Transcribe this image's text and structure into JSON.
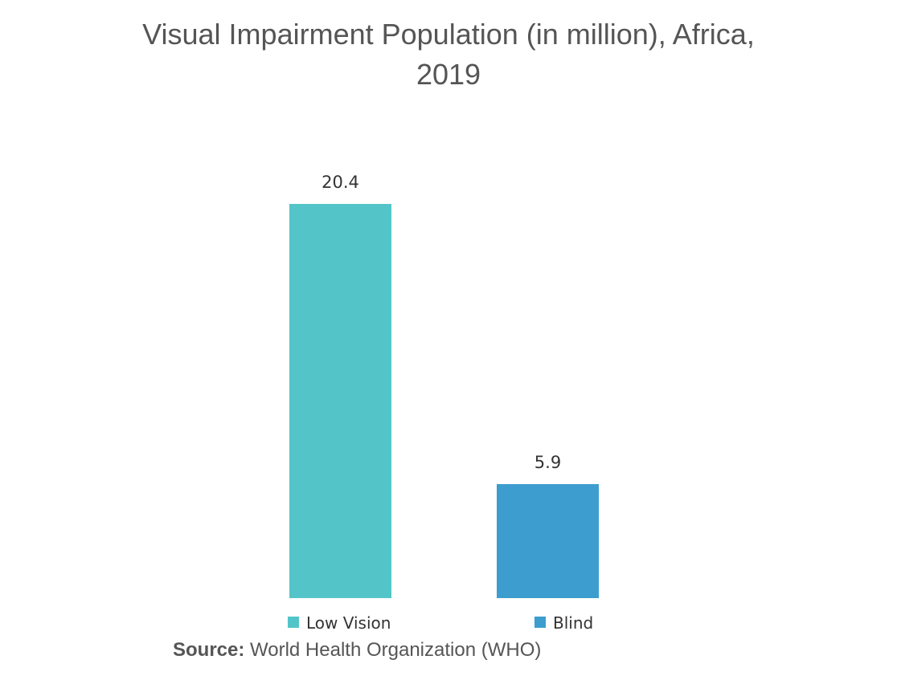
{
  "chart_data": {
    "type": "bar",
    "title_lines": [
      "Visual Impairment Population (in million), Africa,",
      "2019"
    ],
    "categories": [
      "Low Vision",
      "Blind"
    ],
    "values": [
      20.4,
      5.9
    ],
    "value_labels": [
      "20.4",
      "5.9"
    ],
    "colors": [
      "#53c5c8",
      "#3c9dce"
    ],
    "ylim": [
      0,
      20.4
    ],
    "grid": false,
    "legend_position": "bottom",
    "xlabel": "",
    "ylabel": ""
  },
  "source": {
    "prefix": "Source:",
    "text": " World Health Organization (WHO)"
  }
}
